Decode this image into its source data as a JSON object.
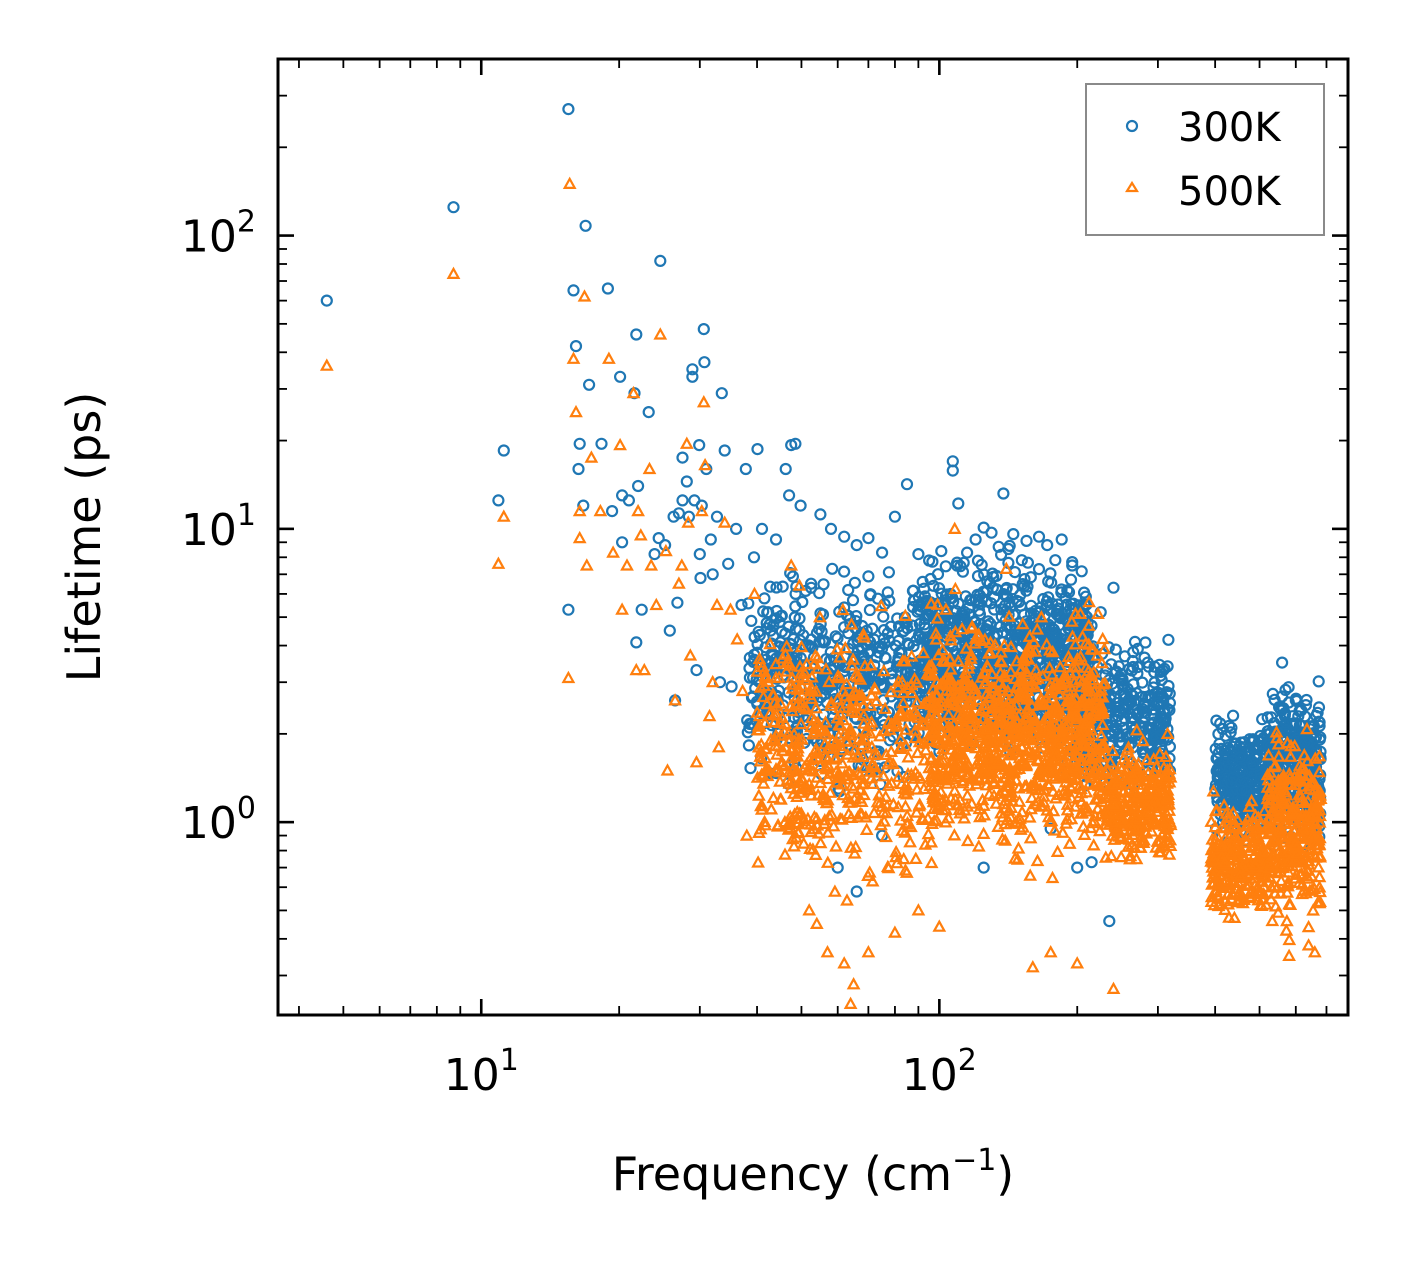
{
  "chart_data": {
    "type": "scatter",
    "title": "",
    "xlabel": "Frequency (cm",
    "xlabel_superscript": "−1",
    "xlabel_suffix": ")",
    "ylabel": "Lifetime (ps)",
    "xscale": "log",
    "yscale": "log",
    "xlim": [
      3.6,
      780
    ],
    "ylim": [
      0.22,
      400
    ],
    "x_ticks": [
      {
        "value": 10,
        "base": "10",
        "exp": "1"
      },
      {
        "value": 100,
        "base": "10",
        "exp": "2"
      }
    ],
    "y_ticks": [
      {
        "value": 1,
        "base": "10",
        "exp": "0"
      },
      {
        "value": 10,
        "base": "10",
        "exp": "1"
      },
      {
        "value": 100,
        "base": "10",
        "exp": "2"
      }
    ],
    "legend": {
      "position": "top-right",
      "entries": [
        "300K",
        "500K"
      ]
    },
    "series": [
      {
        "name": "300K",
        "marker": "circle",
        "color": "#1f77b4",
        "points": [
          [
            4.6,
            60
          ],
          [
            8.7,
            125
          ],
          [
            10.9,
            12.5
          ],
          [
            11.2,
            18.5
          ],
          [
            15.5,
            270
          ],
          [
            15.5,
            5.3
          ],
          [
            15.9,
            65
          ],
          [
            16.1,
            42
          ],
          [
            16.4,
            19.5
          ],
          [
            16.3,
            16
          ],
          [
            16.7,
            12
          ],
          [
            16.9,
            108
          ],
          [
            17.2,
            31
          ],
          [
            18.3,
            19.5
          ],
          [
            18.9,
            66
          ],
          [
            19.3,
            11.5
          ],
          [
            20.1,
            33
          ],
          [
            20.3,
            13
          ],
          [
            20.3,
            9
          ],
          [
            21.0,
            12.5
          ],
          [
            21.6,
            29
          ],
          [
            21.8,
            46
          ],
          [
            21.8,
            4.1
          ],
          [
            22.0,
            14
          ],
          [
            22.4,
            5.3
          ],
          [
            23.2,
            25
          ],
          [
            23.9,
            8.2
          ],
          [
            24.4,
            9.3
          ],
          [
            24.6,
            82
          ],
          [
            25.2,
            8.8
          ],
          [
            25.8,
            4.5
          ],
          [
            26.3,
            11
          ],
          [
            26.5,
            2.6
          ],
          [
            26.8,
            5.6
          ],
          [
            27.0,
            11.3
          ],
          [
            27.5,
            12.5
          ],
          [
            27.5,
            17.5
          ],
          [
            28.1,
            14.5
          ],
          [
            28.4,
            11
          ],
          [
            28.9,
            33
          ],
          [
            28.9,
            35
          ],
          [
            29.2,
            12.5
          ],
          [
            29.5,
            3.3
          ],
          [
            29.9,
            19.3
          ],
          [
            30.0,
            8.2
          ],
          [
            30.1,
            6.8
          ],
          [
            30.3,
            12
          ],
          [
            30.6,
            48
          ],
          [
            30.7,
            37
          ],
          [
            31.0,
            16
          ],
          [
            31.7,
            9.2
          ],
          [
            32.0,
            7
          ],
          [
            32.7,
            11
          ],
          [
            33.2,
            3
          ],
          [
            33.5,
            29
          ],
          [
            34.0,
            18.5
          ],
          [
            34.6,
            7.6
          ],
          [
            35.2,
            2.9
          ],
          [
            36.0,
            10
          ],
          [
            37.0,
            5.5
          ],
          [
            37.8,
            16
          ],
          [
            38.5,
            2.1
          ],
          [
            39.4,
            8
          ],
          [
            40.1,
            18.7
          ],
          [
            41.0,
            10
          ],
          [
            42.3,
            5.2
          ],
          [
            43.0,
            3.5
          ],
          [
            44.0,
            9.2
          ],
          [
            45.6,
            2.5
          ],
          [
            46.2,
            16
          ],
          [
            47.0,
            13
          ],
          [
            47.5,
            19.3
          ],
          [
            48.5,
            19.5
          ],
          [
            49.8,
            12
          ],
          [
            51.0,
            4
          ],
          [
            52.5,
            6.5
          ],
          [
            55,
            11.2
          ],
          [
            58,
            10
          ],
          [
            62,
            9.4
          ],
          [
            66,
            8.8
          ],
          [
            70,
            9.3
          ],
          [
            75,
            8.3
          ],
          [
            80,
            11
          ],
          [
            85,
            14.2
          ],
          [
            90,
            8.2
          ],
          [
            95,
            7.8
          ],
          [
            101,
            8.4
          ],
          [
            107,
            15.8
          ],
          [
            107,
            17
          ],
          [
            110,
            12.2
          ],
          [
            115,
            8.3
          ],
          [
            120,
            9.2
          ],
          [
            125,
            10.1
          ],
          [
            130,
            9.7
          ],
          [
            138,
            13.2
          ],
          [
            145,
            9.6
          ],
          [
            155,
            9.1
          ],
          [
            165,
            9.4
          ],
          [
            172,
            8.8
          ],
          [
            185,
            9.2
          ],
          [
            195,
            7.5
          ],
          [
            210,
            5
          ],
          [
            225,
            5.2
          ],
          [
            240,
            6.3
          ],
          [
            265,
            3.8
          ],
          [
            285,
            3.5
          ],
          [
            315,
            3.4
          ],
          [
            440,
            1.2
          ],
          [
            560,
            3.5
          ],
          [
            600,
            2.6
          ],
          [
            620,
            2
          ],
          [
            650,
            1.4
          ],
          [
            670,
            1.0
          ],
          [
            60,
            0.7
          ],
          [
            66,
            0.58
          ],
          [
            75,
            0.9
          ],
          [
            125,
            0.7
          ],
          [
            175,
            0.95
          ],
          [
            200,
            0.7
          ],
          [
            215,
            0.73
          ],
          [
            235,
            0.46
          ]
        ],
        "clusters": [
          {
            "x": [
              38,
              90
            ],
            "y": [
              1.1,
              9.0
            ],
            "n": 500
          },
          {
            "x": [
              90,
              215
            ],
            "y": [
              1.3,
              10.0
            ],
            "n": 900
          },
          {
            "x": [
              200,
              320
            ],
            "y": [
              1.1,
              4.8
            ],
            "n": 350
          },
          {
            "x": [
              400,
              520
            ],
            "y": [
              0.75,
              2.5
            ],
            "n": 260
          },
          {
            "x": [
              520,
              680
            ],
            "y": [
              0.7,
              3.6
            ],
            "n": 320
          }
        ]
      },
      {
        "name": "500K",
        "marker": "triangle",
        "color": "#ff7f0e",
        "points": [
          [
            4.6,
            36
          ],
          [
            8.7,
            74
          ],
          [
            10.9,
            7.6
          ],
          [
            11.2,
            11
          ],
          [
            15.5,
            3.1
          ],
          [
            15.6,
            150
          ],
          [
            15.9,
            38
          ],
          [
            16.1,
            25
          ],
          [
            16.4,
            11.5
          ],
          [
            16.4,
            9.3
          ],
          [
            16.8,
            62
          ],
          [
            17.0,
            7.5
          ],
          [
            17.4,
            17.5
          ],
          [
            18.2,
            11.5
          ],
          [
            19.0,
            38
          ],
          [
            19.4,
            8.3
          ],
          [
            20.1,
            19.3
          ],
          [
            20.3,
            5.3
          ],
          [
            20.8,
            7.5
          ],
          [
            21.5,
            29
          ],
          [
            21.8,
            3.3
          ],
          [
            22.0,
            11.5
          ],
          [
            22.3,
            9.5
          ],
          [
            22.7,
            3.3
          ],
          [
            23.3,
            16
          ],
          [
            23.5,
            7.5
          ],
          [
            24.1,
            5.5
          ],
          [
            24.6,
            46
          ],
          [
            25.3,
            8.4
          ],
          [
            25.5,
            1.5
          ],
          [
            26.5,
            2.6
          ],
          [
            27.0,
            6.5
          ],
          [
            27.4,
            7.5
          ],
          [
            28.1,
            19.5
          ],
          [
            28.3,
            10.5
          ],
          [
            28.6,
            3.7
          ],
          [
            29.5,
            1.6
          ],
          [
            30.3,
            11.5
          ],
          [
            30.6,
            27
          ],
          [
            30.8,
            16.5
          ],
          [
            31.5,
            2.3
          ],
          [
            32.0,
            3
          ],
          [
            32.7,
            5.5
          ],
          [
            33.0,
            1.8
          ],
          [
            34.0,
            10.5
          ],
          [
            35.0,
            5.3
          ],
          [
            36.2,
            4.2
          ],
          [
            37.2,
            2.8
          ],
          [
            38.0,
            0.9
          ],
          [
            39.5,
            6
          ],
          [
            40.5,
            3.6
          ],
          [
            42.5,
            1.5
          ],
          [
            44.0,
            3.1
          ],
          [
            46.0,
            1
          ],
          [
            47.5,
            7.5
          ],
          [
            49.5,
            6.4
          ],
          [
            52.0,
            0.5
          ],
          [
            54,
            0.45
          ],
          [
            57,
            0.36
          ],
          [
            62,
            0.33
          ],
          [
            65,
            0.28
          ],
          [
            64,
            0.24
          ],
          [
            70,
            0.36
          ],
          [
            80,
            0.42
          ],
          [
            90,
            0.5
          ],
          [
            100,
            0.44
          ],
          [
            108,
            10
          ],
          [
            140,
            7.3
          ],
          [
            160,
            0.32
          ],
          [
            175,
            0.36
          ],
          [
            200,
            0.33
          ],
          [
            240,
            0.27
          ],
          [
            315,
            2
          ],
          [
            580,
            0.35
          ],
          [
            640,
            0.38
          ],
          [
            660,
            0.36
          ]
        ],
        "clusters": [
          {
            "x": [
              40,
              95
            ],
            "y": [
              0.45,
              6.5
            ],
            "n": 520
          },
          {
            "x": [
              95,
              230
            ],
            "y": [
              0.6,
              6.5
            ],
            "n": 1000
          },
          {
            "x": [
              230,
              320
            ],
            "y": [
              0.65,
              2.1
            ],
            "n": 300
          },
          {
            "x": [
              390,
              520
            ],
            "y": [
              0.42,
              1.35
            ],
            "n": 260
          },
          {
            "x": [
              520,
              680
            ],
            "y": [
              0.36,
              2.3
            ],
            "n": 320
          }
        ]
      }
    ]
  }
}
